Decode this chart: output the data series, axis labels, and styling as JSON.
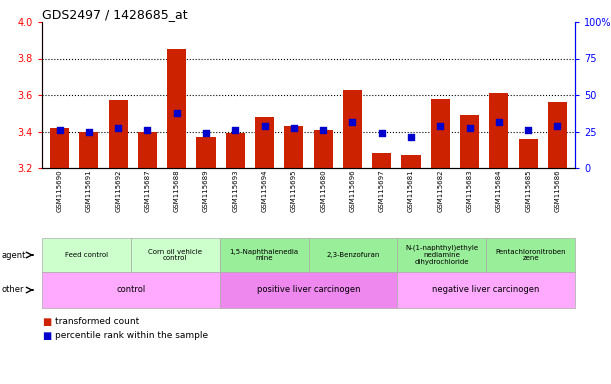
{
  "title": "GDS2497 / 1428685_at",
  "samples": [
    "GSM115690",
    "GSM115691",
    "GSM115692",
    "GSM115687",
    "GSM115688",
    "GSM115689",
    "GSM115693",
    "GSM115694",
    "GSM115695",
    "GSM115680",
    "GSM115696",
    "GSM115697",
    "GSM115681",
    "GSM115682",
    "GSM115683",
    "GSM115684",
    "GSM115685",
    "GSM115686"
  ],
  "bar_values": [
    3.42,
    3.4,
    3.57,
    3.4,
    3.85,
    3.37,
    3.39,
    3.48,
    3.43,
    3.41,
    3.63,
    3.28,
    3.27,
    3.58,
    3.49,
    3.61,
    3.36,
    3.56
  ],
  "dot_values": [
    3.41,
    3.4,
    3.42,
    3.41,
    3.5,
    3.39,
    3.41,
    3.43,
    3.42,
    3.41,
    3.45,
    3.39,
    3.37,
    3.43,
    3.42,
    3.45,
    3.41,
    3.43
  ],
  "bar_color": "#cc2200",
  "dot_color": "#0000cc",
  "ylim_left": [
    3.2,
    4.0
  ],
  "ylim_right": [
    0,
    100
  ],
  "yticks_left": [
    3.2,
    3.4,
    3.6,
    3.8,
    4.0
  ],
  "yticks_right": [
    0,
    25,
    50,
    75,
    100
  ],
  "dotted_lines": [
    3.4,
    3.6,
    3.8
  ],
  "agent_groups": [
    {
      "label": "Feed control",
      "start": 0,
      "end": 3,
      "color": "#ccffcc"
    },
    {
      "label": "Corn oil vehicle\ncontrol",
      "start": 3,
      "end": 6,
      "color": "#ccffcc"
    },
    {
      "label": "1,5-Naphthalenedia\nmine",
      "start": 6,
      "end": 9,
      "color": "#99ee99"
    },
    {
      "label": "2,3-Benzofuran",
      "start": 9,
      "end": 12,
      "color": "#99ee99"
    },
    {
      "label": "N-(1-naphthyl)ethyle\nnediamine\ndihydrochloride",
      "start": 12,
      "end": 15,
      "color": "#99ee99"
    },
    {
      "label": "Pentachloronitroben\nzene",
      "start": 15,
      "end": 18,
      "color": "#99ee99"
    }
  ],
  "other_groups": [
    {
      "label": "control",
      "start": 0,
      "end": 6,
      "color": "#ffaaff"
    },
    {
      "label": "positive liver carcinogen",
      "start": 6,
      "end": 12,
      "color": "#ee88ee"
    },
    {
      "label": "negative liver carcinogen",
      "start": 12,
      "end": 18,
      "color": "#ffaaff"
    }
  ],
  "agent_label": "agent",
  "other_label": "other",
  "legend_items": [
    {
      "label": "transformed count",
      "color": "#cc2200"
    },
    {
      "label": "percentile rank within the sample",
      "color": "#0000cc"
    }
  ]
}
